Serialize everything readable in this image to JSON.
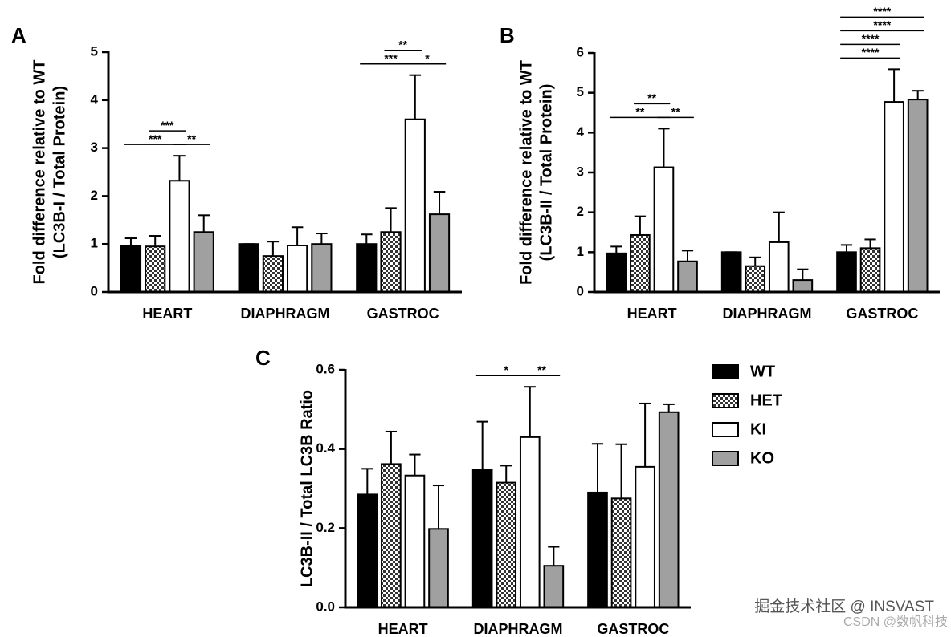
{
  "chart_data": [
    {
      "type": "bar",
      "panel": "A",
      "ylabel": [
        "Fold difference relative to WT",
        "(LC3B-I / Total Protein)"
      ],
      "categories": [
        "HEART",
        "DIAPHRAGM",
        "GASTROC"
      ],
      "series": [
        {
          "color": "#000000",
          "values": [
            0.97,
            1.0,
            1.0
          ],
          "errors": [
            0.15,
            0,
            0.2
          ]
        },
        {
          "color": "#555555",
          "pattern": "checker",
          "values": [
            0.95,
            0.75,
            1.25
          ],
          "errors": [
            0.22,
            0.3,
            0.5
          ]
        },
        {
          "color": "#ffffff",
          "values": [
            2.32,
            0.97,
            3.6
          ],
          "errors": [
            0.52,
            0.38,
            0.92
          ]
        },
        {
          "color": "#a0a0a0",
          "values": [
            1.25,
            1.0,
            1.62
          ],
          "errors": [
            0.35,
            0.22,
            0.47
          ]
        }
      ],
      "comparisons": [
        {
          "category": 0,
          "from": 0,
          "to": 2,
          "label": "***"
        },
        {
          "category": 0,
          "from": 2,
          "to": 3,
          "label": "**"
        },
        {
          "category": 0,
          "from": 1,
          "to": 2,
          "label": "***"
        },
        {
          "category": 2,
          "from": 0,
          "to": 2,
          "label": "***"
        },
        {
          "category": 2,
          "from": 2,
          "to": 3,
          "label": "*"
        },
        {
          "category": 2,
          "from": 1,
          "to": 2,
          "label": "**"
        }
      ],
      "ylim": [
        0,
        5
      ],
      "yticks": [
        0,
        1,
        2,
        3,
        4,
        5
      ]
    },
    {
      "type": "bar",
      "panel": "B",
      "ylabel": [
        "Fold difference relative to WT",
        "(LC3B-II / Total Protein)"
      ],
      "categories": [
        "HEART",
        "DIAPHRAGM",
        "GASTROC"
      ],
      "series": [
        {
          "color": "#000000",
          "values": [
            0.97,
            1.0,
            1.0
          ],
          "errors": [
            0.17,
            0,
            0.18
          ]
        },
        {
          "color": "#555555",
          "pattern": "checker",
          "values": [
            1.43,
            0.65,
            1.1
          ],
          "errors": [
            0.47,
            0.22,
            0.22
          ]
        },
        {
          "color": "#ffffff",
          "values": [
            3.13,
            1.25,
            4.77
          ],
          "errors": [
            0.97,
            0.75,
            0.82
          ]
        },
        {
          "color": "#a0a0a0",
          "values": [
            0.77,
            0.3,
            4.83
          ],
          "errors": [
            0.27,
            0.27,
            0.22
          ]
        }
      ],
      "comparisons": [
        {
          "category": 0,
          "from": 0,
          "to": 2,
          "label": "**"
        },
        {
          "category": 0,
          "from": 2,
          "to": 3,
          "label": "**"
        },
        {
          "category": 0,
          "from": 1,
          "to": 2,
          "label": "**"
        },
        {
          "category": 2,
          "from": 0,
          "to": 2,
          "label": "****"
        },
        {
          "category": 2,
          "from": 0,
          "to": 2,
          "label": "****"
        },
        {
          "category": 2,
          "from": 0,
          "to": 3,
          "label": "****"
        },
        {
          "category": 2,
          "from": 0,
          "to": 3,
          "label": "****"
        }
      ],
      "ylim": [
        0,
        6
      ],
      "yticks": [
        0,
        1,
        2,
        3,
        4,
        5,
        6
      ]
    },
    {
      "type": "bar",
      "panel": "C",
      "ylabel": [
        "LC3B-II / Total LC3B Ratio"
      ],
      "categories": [
        "HEART",
        "DIAPHRAGM",
        "GASTROC"
      ],
      "series": [
        {
          "name": "WT",
          "color": "#000000",
          "values": [
            0.285,
            0.347,
            0.29
          ],
          "errors": [
            0.065,
            0.122,
            0.123
          ]
        },
        {
          "name": "HET",
          "color": "#555555",
          "pattern": "checker",
          "values": [
            0.362,
            0.315,
            0.275
          ],
          "errors": [
            0.082,
            0.043,
            0.137
          ]
        },
        {
          "name": "KI",
          "color": "#ffffff",
          "values": [
            0.333,
            0.43,
            0.355
          ],
          "errors": [
            0.053,
            0.127,
            0.16
          ]
        },
        {
          "name": "KO",
          "color": "#a0a0a0",
          "values": [
            0.198,
            0.105,
            0.493
          ],
          "errors": [
            0.11,
            0.048,
            0.02
          ]
        }
      ],
      "comparisons": [
        {
          "category": 1,
          "from": 0,
          "to": 2,
          "label": "*"
        },
        {
          "category": 1,
          "from": 2,
          "to": 3,
          "label": "**"
        }
      ],
      "ylim": [
        0,
        0.6
      ],
      "yticks": [
        {
          "value": 0,
          "label": "0.0"
        },
        0.2,
        0.4,
        0.6
      ],
      "legend": "right"
    }
  ],
  "watermark": {
    "site": "掘金技术社区 @ INSVAST",
    "source": "CSDN @数帆科技"
  }
}
